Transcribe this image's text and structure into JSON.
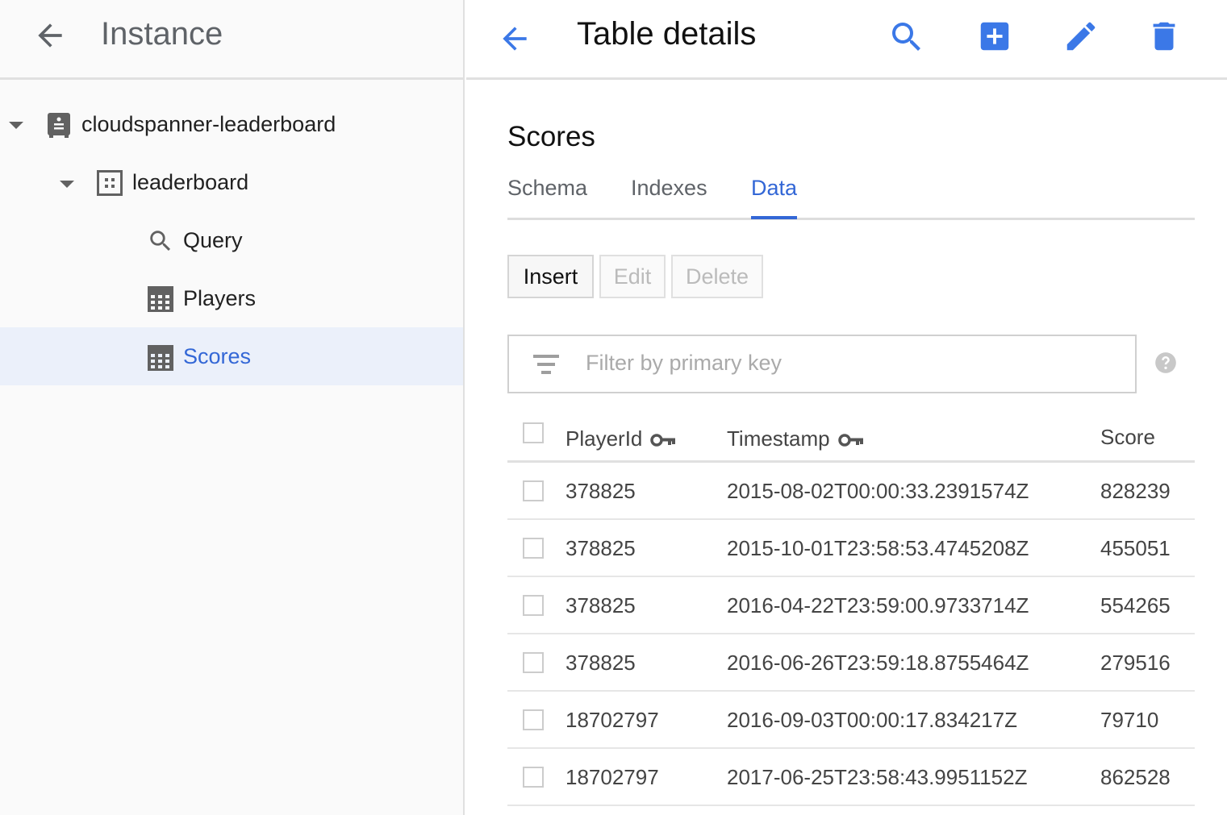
{
  "sidebar": {
    "title": "Instance",
    "tree": [
      {
        "label": "cloudspanner-leaderboard",
        "icon": "instance-icon",
        "expanded": true
      },
      {
        "label": "leaderboard",
        "icon": "database-icon",
        "expanded": true
      },
      {
        "label": "Query",
        "icon": "search-icon"
      },
      {
        "label": "Players",
        "icon": "table-icon"
      },
      {
        "label": "Scores",
        "icon": "table-icon",
        "selected": true
      }
    ]
  },
  "header": {
    "title": "Table details",
    "accent": "#3b78e7"
  },
  "table_name": "Scores",
  "tabs": [
    {
      "label": "Schema"
    },
    {
      "label": "Indexes"
    },
    {
      "label": "Data",
      "active": true
    }
  ],
  "actions": {
    "insert": "Insert",
    "edit": "Edit",
    "delete": "Delete"
  },
  "filter": {
    "placeholder": "Filter by primary key",
    "value": ""
  },
  "columns": [
    "PlayerId",
    "Timestamp",
    "Score"
  ],
  "rows": [
    [
      "378825",
      "2015-08-02T00:00:33.2391574Z",
      "828239"
    ],
    [
      "378825",
      "2015-10-01T23:58:53.4745208Z",
      "455051"
    ],
    [
      "378825",
      "2016-04-22T23:59:00.9733714Z",
      "554265"
    ],
    [
      "378825",
      "2016-06-26T23:59:18.8755464Z",
      "279516"
    ],
    [
      "18702797",
      "2016-09-03T00:00:17.834217Z",
      "79710"
    ],
    [
      "18702797",
      "2017-06-25T23:58:43.9951152Z",
      "862528"
    ]
  ]
}
